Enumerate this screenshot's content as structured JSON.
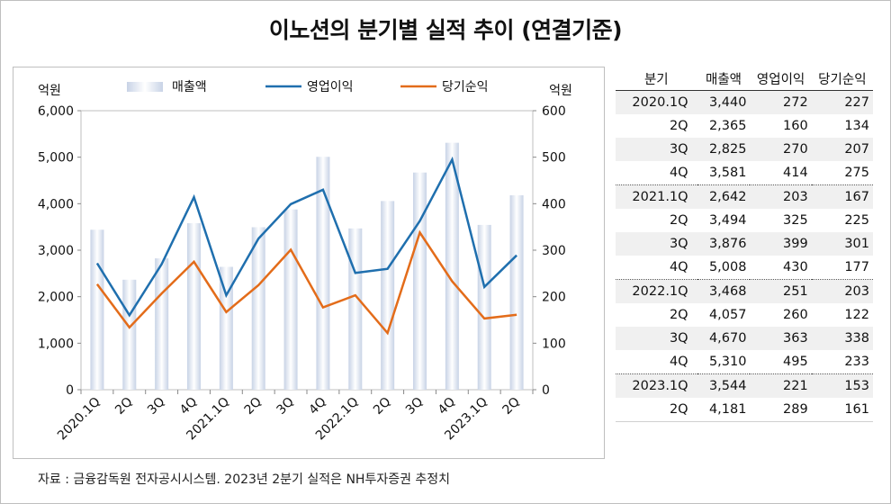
{
  "title": "이노션의 분기별 실적 추이 (연결기준)",
  "source": "자료 : 금융감독원 전자공시시스템. 2023년 2분기 실적은 NH투자증권 추정치",
  "chart_data": {
    "type": "bar-line",
    "categories": [
      "2020.1Q",
      "2Q",
      "3Q",
      "4Q",
      "2021.1Q",
      "2Q",
      "3Q",
      "4Q",
      "2022.1Q",
      "2Q",
      "3Q",
      "4Q",
      "2023.1Q",
      "2Q"
    ],
    "y_left": {
      "label": "억원",
      "range": [
        0,
        6000
      ],
      "ticks": [
        "0",
        "1,000",
        "2,000",
        "3,000",
        "4,000",
        "5,000",
        "6,000"
      ]
    },
    "y_right": {
      "label": "억원",
      "range": [
        0,
        600
      ],
      "ticks": [
        "0",
        "100",
        "200",
        "300",
        "400",
        "500",
        "600"
      ]
    },
    "series": [
      {
        "name": "매출액",
        "type": "bar",
        "axis": "left",
        "values": [
          3440,
          2365,
          2825,
          3581,
          2642,
          3494,
          3876,
          5008,
          3468,
          4057,
          4670,
          5310,
          3544,
          4181
        ]
      },
      {
        "name": "영업이익",
        "type": "line",
        "axis": "right",
        "color": "#1f6fae",
        "values": [
          272,
          160,
          270,
          414,
          203,
          325,
          399,
          430,
          251,
          260,
          363,
          495,
          221,
          289
        ]
      },
      {
        "name": "당기순익",
        "type": "line",
        "axis": "right",
        "color": "#e36c1a",
        "values": [
          227,
          134,
          207,
          275,
          167,
          225,
          301,
          177,
          203,
          122,
          338,
          233,
          153,
          161
        ]
      }
    ]
  },
  "table": {
    "headers": [
      "분기",
      "매출액",
      "영업이익",
      "당기순익"
    ],
    "rows": [
      [
        "2020.1Q",
        "3,440",
        "272",
        "227"
      ],
      [
        "2Q",
        "2,365",
        "160",
        "134"
      ],
      [
        "3Q",
        "2,825",
        "270",
        "207"
      ],
      [
        "4Q",
        "3,581",
        "414",
        "275"
      ],
      [
        "2021.1Q",
        "2,642",
        "203",
        "167"
      ],
      [
        "2Q",
        "3,494",
        "325",
        "225"
      ],
      [
        "3Q",
        "3,876",
        "399",
        "301"
      ],
      [
        "4Q",
        "5,008",
        "430",
        "177"
      ],
      [
        "2022.1Q",
        "3,468",
        "251",
        "203"
      ],
      [
        "2Q",
        "4,057",
        "260",
        "122"
      ],
      [
        "3Q",
        "4,670",
        "363",
        "338"
      ],
      [
        "4Q",
        "5,310",
        "495",
        "233"
      ],
      [
        "2023.1Q",
        "3,544",
        "221",
        "153"
      ],
      [
        "2Q",
        "4,181",
        "289",
        "161"
      ]
    ]
  }
}
